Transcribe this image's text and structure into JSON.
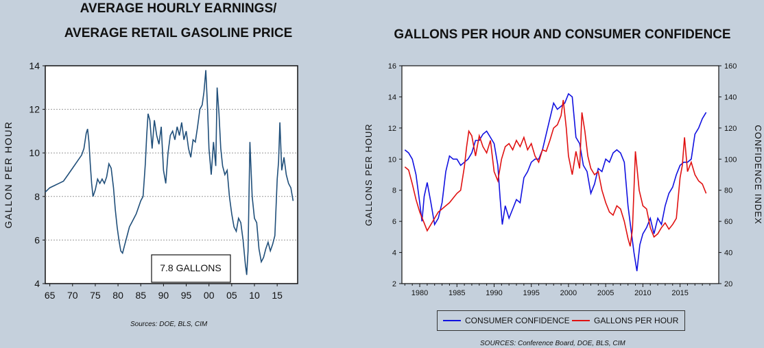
{
  "titles": {
    "left_line1": "AVERAGE HOURLY EARNINGS/",
    "left_line2": "AVERAGE RETAIL GASOLINE PRICE",
    "right": "GALLONS PER HOUR AND CONSUMER CONFIDENCE"
  },
  "sources": {
    "left": "Sources: DOE, BLS, CIM",
    "right": "SOURCES: Conference Board, DOE, BLS, CIM"
  },
  "colors": {
    "left_line": "#1f4e79",
    "confidence": "#1010e0",
    "gallons": "#e01010",
    "grid": "#999999"
  },
  "chart_data": [
    {
      "type": "line",
      "title": "AVERAGE HOURLY EARNINGS/ AVERAGE RETAIL GASOLINE PRICE",
      "ylabel": "GALLON PER HOUR",
      "xlabel": "",
      "ylim": [
        4,
        14
      ],
      "yticks": [
        4,
        6,
        8,
        10,
        12,
        14
      ],
      "xlim": [
        1964,
        2019.5
      ],
      "xtick_labels": [
        "65",
        "70",
        "75",
        "80",
        "85",
        "90",
        "95",
        "00",
        "05",
        "10",
        "15"
      ],
      "xtick_values": [
        1965,
        1970,
        1975,
        1980,
        1985,
        1990,
        1995,
        2000,
        2005,
        2010,
        2015
      ],
      "annotation": "7.8 GALLONS",
      "grid": "horizontal dashed",
      "series": [
        {
          "x": [
            1964.0,
            1965.0,
            1966.0,
            1967.0,
            1968.0,
            1969.0,
            1970.0,
            1971.0,
            1972.0,
            1972.5,
            1973.0,
            1973.3,
            1973.6,
            1973.9,
            1974.2,
            1974.5,
            1975.0,
            1975.5,
            1976.0,
            1976.5,
            1977.0,
            1977.5,
            1978.0,
            1978.5,
            1979.0,
            1979.4,
            1979.8,
            1980.2,
            1980.6,
            1981.0,
            1981.5,
            1982.0,
            1982.5,
            1983.0,
            1983.5,
            1984.0,
            1984.5,
            1985.0,
            1985.5,
            1986.0,
            1986.3,
            1986.6,
            1987.0,
            1987.5,
            1988.0,
            1988.5,
            1989.0,
            1989.5,
            1990.0,
            1990.5,
            1991.0,
            1991.5,
            1992.0,
            1992.5,
            1993.0,
            1993.5,
            1994.0,
            1994.5,
            1995.0,
            1995.5,
            1996.0,
            1996.5,
            1997.0,
            1997.5,
            1998.0,
            1998.5,
            1998.9,
            1999.3,
            1999.7,
            2000.0,
            2000.5,
            2001.0,
            2001.5,
            2001.8,
            2002.2,
            2002.6,
            2003.0,
            2003.5,
            2004.0,
            2004.5,
            2005.0,
            2005.5,
            2006.0,
            2006.5,
            2007.0,
            2007.5,
            2008.0,
            2008.3,
            2008.6,
            2009.0,
            2009.5,
            2010.0,
            2010.5,
            2011.0,
            2011.5,
            2012.0,
            2012.5,
            2013.0,
            2013.5,
            2014.0,
            2014.5,
            2015.0,
            2015.3,
            2015.6,
            2016.0,
            2016.5,
            2017.0,
            2017.5,
            2018.0,
            2018.5
          ],
          "values": [
            8.2,
            8.4,
            8.5,
            8.6,
            8.7,
            9.0,
            9.3,
            9.6,
            9.9,
            10.2,
            10.9,
            11.1,
            10.5,
            9.5,
            8.6,
            8.0,
            8.3,
            8.8,
            8.6,
            8.8,
            8.6,
            8.9,
            9.5,
            9.3,
            8.4,
            7.4,
            6.6,
            6.0,
            5.5,
            5.4,
            5.8,
            6.2,
            6.6,
            6.8,
            7.0,
            7.2,
            7.5,
            7.8,
            8.0,
            9.5,
            10.8,
            11.8,
            11.5,
            10.2,
            11.5,
            10.8,
            10.4,
            11.2,
            9.2,
            8.6,
            10.0,
            10.8,
            11.0,
            10.6,
            11.2,
            10.8,
            11.4,
            10.6,
            11.0,
            10.2,
            9.8,
            10.6,
            10.5,
            11.2,
            12.0,
            12.2,
            12.8,
            13.8,
            12.0,
            10.2,
            9.0,
            10.5,
            9.4,
            13.0,
            11.8,
            10.2,
            9.4,
            9.0,
            9.2,
            8.0,
            7.2,
            6.6,
            6.4,
            7.0,
            6.8,
            6.0,
            4.9,
            4.4,
            5.5,
            10.5,
            8.0,
            7.0,
            6.8,
            5.6,
            5.0,
            5.2,
            5.6,
            5.9,
            5.5,
            5.8,
            6.2,
            8.8,
            9.6,
            11.4,
            9.2,
            9.8,
            9.0,
            8.6,
            8.4,
            7.8
          ]
        }
      ]
    },
    {
      "type": "line",
      "title": "GALLONS PER HOUR AND CONSUMER CONFIDENCE",
      "ylabel": "GALLONS PER HOUR",
      "y2label": "CONFIDENCE INDEX",
      "ylim": [
        2,
        16
      ],
      "yticks": [
        2,
        4,
        6,
        8,
        10,
        12,
        14,
        16
      ],
      "y2lim": [
        20,
        160
      ],
      "y2ticks": [
        20,
        40,
        60,
        80,
        100,
        120,
        140,
        160
      ],
      "xlim": [
        1977.6,
        2020.2
      ],
      "xtick_labels": [
        "1980",
        "1985",
        "1990",
        "1995",
        "2000",
        "2005",
        "2010",
        "2015"
      ],
      "xtick_values": [
        1980,
        1985,
        1990,
        1995,
        2000,
        2005,
        2010,
        2015
      ],
      "legend": "bottom",
      "series": [
        {
          "name": "CONSUMER CONFIDENCE",
          "axis": "right",
          "x": [
            1978.0,
            1978.5,
            1979.0,
            1979.5,
            1980.0,
            1980.3,
            1980.6,
            1981.0,
            1981.5,
            1982.0,
            1982.5,
            1983.0,
            1983.5,
            1984.0,
            1984.5,
            1985.0,
            1985.5,
            1986.0,
            1986.5,
            1987.0,
            1987.5,
            1988.0,
            1988.5,
            1989.0,
            1989.5,
            1990.0,
            1990.5,
            1990.8,
            1991.1,
            1991.5,
            1992.0,
            1992.5,
            1993.0,
            1993.5,
            1994.0,
            1994.5,
            1995.0,
            1995.5,
            1996.0,
            1996.5,
            1997.0,
            1997.5,
            1998.0,
            1998.5,
            1999.0,
            1999.5,
            2000.0,
            2000.5,
            2001.0,
            2001.5,
            2002.0,
            2002.5,
            2003.0,
            2003.5,
            2004.0,
            2004.5,
            2005.0,
            2005.5,
            2006.0,
            2006.5,
            2007.0,
            2007.5,
            2008.0,
            2008.4,
            2008.8,
            2009.2,
            2009.6,
            2010.0,
            2010.5,
            2011.0,
            2011.5,
            2012.0,
            2012.5,
            2013.0,
            2013.5,
            2014.0,
            2014.5,
            2015.0,
            2015.5,
            2016.0,
            2016.5,
            2017.0,
            2017.5,
            2018.0,
            2018.5
          ],
          "values": [
            106,
            104,
            100,
            90,
            72,
            60,
            76,
            85,
            72,
            58,
            62,
            72,
            92,
            102,
            100,
            100,
            96,
            98,
            100,
            104,
            112,
            112,
            116,
            118,
            114,
            110,
            96,
            75,
            58,
            70,
            62,
            68,
            74,
            72,
            88,
            92,
            98,
            100,
            100,
            106,
            116,
            126,
            136,
            132,
            134,
            136,
            142,
            140,
            114,
            110,
            96,
            92,
            78,
            84,
            94,
            92,
            100,
            98,
            104,
            106,
            104,
            98,
            70,
            55,
            40,
            28,
            45,
            52,
            56,
            62,
            52,
            62,
            58,
            70,
            78,
            82,
            90,
            96,
            98,
            98,
            100,
            116,
            120,
            126,
            130
          ]
        },
        {
          "name": "GALLONS PER HOUR",
          "axis": "left",
          "x": [
            1978.0,
            1978.5,
            1979.0,
            1979.5,
            1980.0,
            1980.5,
            1981.0,
            1981.5,
            1982.0,
            1982.5,
            1983.0,
            1983.5,
            1984.0,
            1984.5,
            1985.0,
            1985.5,
            1986.0,
            1986.3,
            1986.6,
            1987.0,
            1987.5,
            1988.0,
            1988.5,
            1989.0,
            1989.5,
            1990.0,
            1990.5,
            1991.0,
            1991.5,
            1992.0,
            1992.5,
            1993.0,
            1993.5,
            1994.0,
            1994.5,
            1995.0,
            1995.5,
            1996.0,
            1996.5,
            1997.0,
            1997.5,
            1998.0,
            1998.5,
            1999.0,
            1999.3,
            1999.7,
            2000.0,
            2000.5,
            2001.0,
            2001.5,
            2001.8,
            2002.2,
            2002.6,
            2003.0,
            2003.5,
            2004.0,
            2004.5,
            2005.0,
            2005.5,
            2006.0,
            2006.5,
            2007.0,
            2007.5,
            2008.0,
            2008.3,
            2008.6,
            2009.0,
            2009.5,
            2010.0,
            2010.5,
            2011.0,
            2011.5,
            2012.0,
            2012.5,
            2013.0,
            2013.5,
            2014.0,
            2014.5,
            2015.0,
            2015.3,
            2015.6,
            2016.0,
            2016.5,
            2017.0,
            2017.5,
            2018.0,
            2018.5
          ],
          "values": [
            9.5,
            9.3,
            8.4,
            7.4,
            6.6,
            6.0,
            5.4,
            5.8,
            6.2,
            6.6,
            6.8,
            7.0,
            7.2,
            7.5,
            7.8,
            8.0,
            9.5,
            10.8,
            11.8,
            11.5,
            10.2,
            11.5,
            10.8,
            10.4,
            11.2,
            9.2,
            8.6,
            10.0,
            10.8,
            11.0,
            10.6,
            11.2,
            10.8,
            11.4,
            10.6,
            11.0,
            10.2,
            9.8,
            10.6,
            10.5,
            11.2,
            12.0,
            12.2,
            12.8,
            13.8,
            12.0,
            10.2,
            9.0,
            10.5,
            9.4,
            13.0,
            11.8,
            10.2,
            9.4,
            9.0,
            9.2,
            8.0,
            7.2,
            6.6,
            6.4,
            7.0,
            6.8,
            6.0,
            4.9,
            4.4,
            5.5,
            10.5,
            8.0,
            7.0,
            6.8,
            5.6,
            5.0,
            5.2,
            5.6,
            5.9,
            5.5,
            5.8,
            6.2,
            8.8,
            9.6,
            11.4,
            9.2,
            9.8,
            9.0,
            8.6,
            8.4,
            7.8
          ]
        }
      ]
    }
  ]
}
